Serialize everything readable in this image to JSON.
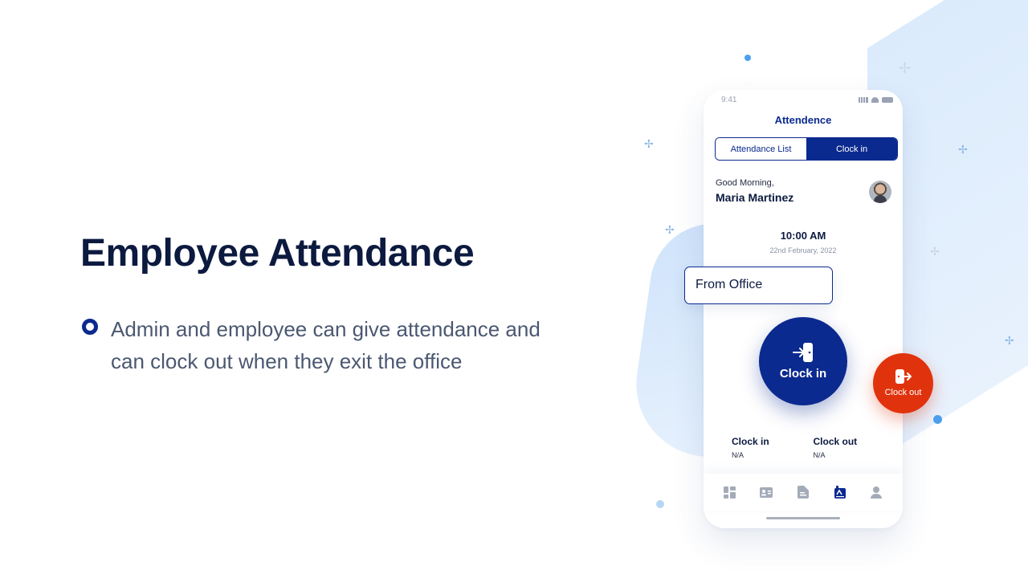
{
  "hero": {
    "title": "Employee Attendance",
    "bullet_text": "Admin and employee can give attendance and can clock out when they exit the office"
  },
  "phone": {
    "status_time": "9:41",
    "title": "Attendence",
    "tabs": [
      {
        "label": "Attendance List",
        "active": false
      },
      {
        "label": "Clock in",
        "active": true
      }
    ],
    "greeting": "Good Morning,",
    "user_name": "Maria Martinez",
    "current_time": "10:00 AM",
    "current_date": "22nd February, 2022",
    "stats": [
      {
        "label": "Clock in",
        "value": "N/A"
      },
      {
        "label": "Clock out",
        "value": "N/A"
      }
    ],
    "tabbar_icons": [
      "dashboard-icon",
      "id-card-icon",
      "document-icon",
      "attendance-icon",
      "profile-icon"
    ],
    "active_tab_index": 3
  },
  "location_card": {
    "label": "From Office"
  },
  "clock_in_button": {
    "label": "Clock in"
  },
  "clock_out_button": {
    "label": "Clock out"
  },
  "colors": {
    "primary": "#0b2a8f",
    "danger": "#e0330d",
    "title": "#0c1a3f",
    "body_text": "#4b5871",
    "bg_accent": "#d9eafc"
  }
}
